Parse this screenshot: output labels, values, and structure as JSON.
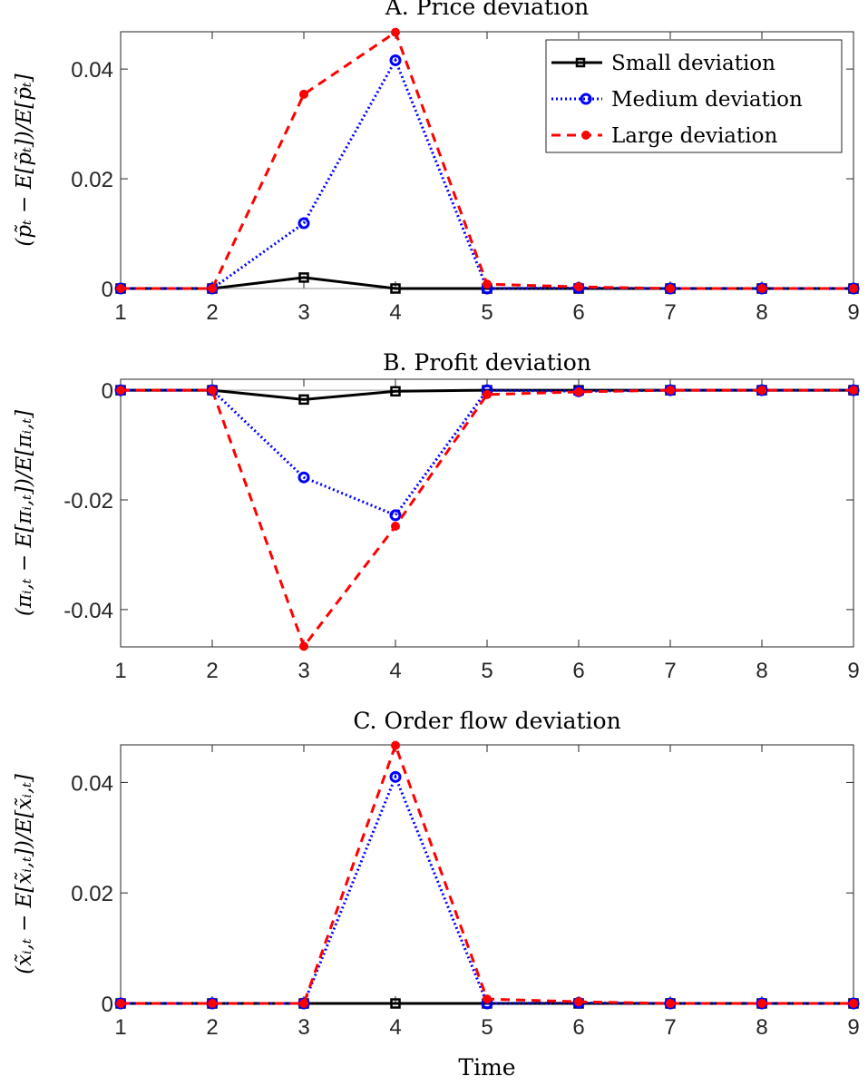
{
  "chart_data": [
    {
      "type": "line",
      "title": "A. Price deviation",
      "xlabel": "",
      "ylabel": "(p̃ₜ − E[p̃ₜ])/E[p̃ₜ]",
      "x": [
        1,
        2,
        3,
        4,
        5,
        6,
        7,
        8,
        9
      ],
      "xlim": [
        1,
        9
      ],
      "ylim": [
        0,
        0.0468
      ],
      "yticks": [
        0,
        0.02,
        0.04
      ],
      "ytick_labels": [
        "0",
        "0.02",
        "0.04"
      ],
      "xtick_labels": [
        "1",
        "2",
        "3",
        "4",
        "5",
        "6",
        "7",
        "8",
        "9"
      ],
      "legend_position": "top-right",
      "series": [
        {
          "name": "Small deviation",
          "values": [
            0,
            0,
            0.002,
            0,
            0,
            0,
            0,
            0,
            0
          ]
        },
        {
          "name": "Medium deviation",
          "values": [
            0,
            0,
            0.0119,
            0.0416,
            0,
            0.0001,
            0,
            0,
            0
          ]
        },
        {
          "name": "Large deviation",
          "values": [
            0,
            0,
            0.0354,
            0.0467,
            0.0008,
            0.0003,
            0,
            0,
            0
          ]
        }
      ]
    },
    {
      "type": "line",
      "title": "B. Profit deviation",
      "xlabel": "",
      "ylabel": "(πᵢ,ₜ − E[πᵢ,ₜ])/E[πᵢ,ₜ]",
      "x": [
        1,
        2,
        3,
        4,
        5,
        6,
        7,
        8,
        9
      ],
      "xlim": [
        1,
        9
      ],
      "ylim": [
        -0.0468,
        0.002
      ],
      "yticks": [
        -0.04,
        -0.02,
        0
      ],
      "ytick_labels": [
        "-0.04",
        "-0.02",
        "0"
      ],
      "xtick_labels": [
        "1",
        "2",
        "3",
        "4",
        "5",
        "6",
        "7",
        "8",
        "9"
      ],
      "series": [
        {
          "name": "Small deviation",
          "values": [
            0,
            0,
            -0.0017,
            -0.0002,
            0,
            0,
            0,
            0,
            0
          ]
        },
        {
          "name": "Medium deviation",
          "values": [
            0,
            0,
            -0.0159,
            -0.0228,
            0,
            -0.0002,
            0,
            0,
            0
          ]
        },
        {
          "name": "Large deviation",
          "values": [
            0,
            0,
            -0.0467,
            -0.0248,
            -0.0008,
            -0.0003,
            0,
            0,
            0
          ]
        }
      ]
    },
    {
      "type": "line",
      "title": "C. Order flow deviation",
      "xlabel": "Time",
      "ylabel": "(x̃ᵢ,ₜ − E[x̃ᵢ,ₜ])/E[x̃ᵢ,ₜ]",
      "x": [
        1,
        2,
        3,
        4,
        5,
        6,
        7,
        8,
        9
      ],
      "xlim": [
        1,
        9
      ],
      "ylim": [
        0,
        0.0468
      ],
      "yticks": [
        0,
        0.02,
        0.04
      ],
      "ytick_labels": [
        "0",
        "0.02",
        "0.04"
      ],
      "xtick_labels": [
        "1",
        "2",
        "3",
        "4",
        "5",
        "6",
        "7",
        "8",
        "9"
      ],
      "series": [
        {
          "name": "Small deviation",
          "values": [
            0,
            0,
            0,
            0,
            0,
            0,
            0,
            0,
            0
          ]
        },
        {
          "name": "Medium deviation",
          "values": [
            0,
            0,
            0,
            0.041,
            0,
            0.0001,
            0,
            0,
            0
          ]
        },
        {
          "name": "Large deviation",
          "values": [
            0,
            0,
            0,
            0.0467,
            0.0008,
            0.0003,
            0,
            0,
            0
          ]
        }
      ]
    }
  ],
  "styles": {
    "series_colors": [
      "#000000",
      "#0000ff",
      "#ff0000"
    ],
    "series_markers": [
      "square",
      "circle-open",
      "circle-filled"
    ],
    "series_dash": [
      "solid",
      "dotted",
      "dashed"
    ]
  }
}
